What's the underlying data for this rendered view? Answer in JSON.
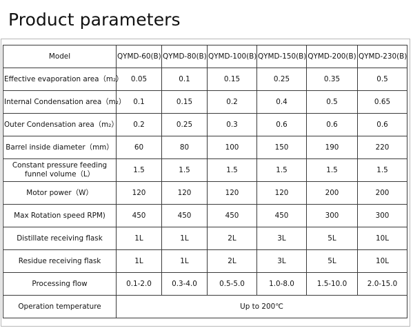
{
  "page_title": "Product parameters",
  "table": {
    "header_label": "Model",
    "models": [
      "QYMD-60(B)",
      "QYMD-80(B)",
      "QYMD-100(B)",
      "QYMD-150(B)",
      "QYMD-200(B)",
      "QYMD-230(B)"
    ],
    "rows": [
      {
        "label": "Effective evaporation area（m₂）",
        "values": [
          "0.05",
          "0.1",
          "0.15",
          "0.25",
          "0.35",
          "0.5"
        ]
      },
      {
        "label": "Internal Condensation area（m₂）",
        "values": [
          "0.1",
          "0.15",
          "0.2",
          "0.4",
          "0.5",
          "0.65"
        ]
      },
      {
        "label": "Outer Condensation area（m₂）",
        "values": [
          "0.2",
          "0.25",
          "0.3",
          "0.6",
          "0.6",
          "0.6"
        ]
      },
      {
        "label": "Barrel inside diameter（mm）",
        "values": [
          "60",
          "80",
          "100",
          "150",
          "190",
          "220"
        ]
      },
      {
        "label": "Constant pressure feeding funnel volume（L）",
        "values": [
          "1.5",
          "1.5",
          "1.5",
          "1.5",
          "1.5",
          "1.5"
        ]
      },
      {
        "label": "Motor power（W）",
        "values": [
          "120",
          "120",
          "120",
          "120",
          "200",
          "200"
        ]
      },
      {
        "label": "Max Rotation speed RPM)",
        "values": [
          "450",
          "450",
          "450",
          "450",
          "300",
          "300"
        ]
      },
      {
        "label": "Distillate receiving flask",
        "values": [
          "1L",
          "1L",
          "2L",
          "3L",
          "5L",
          "10L"
        ]
      },
      {
        "label": "Residue receiving flask",
        "values": [
          "1L",
          "1L",
          "2L",
          "3L",
          "5L",
          "10L"
        ]
      },
      {
        "label": "Processing flow",
        "values": [
          "0.1-2.0",
          "0.3-4.0",
          "0.5-5.0",
          "1.0-8.0",
          "1.5-10.0",
          "2.0-15.0"
        ]
      }
    ],
    "footer": {
      "label": "Operation temperature",
      "value": "Up to 200℃"
    }
  }
}
